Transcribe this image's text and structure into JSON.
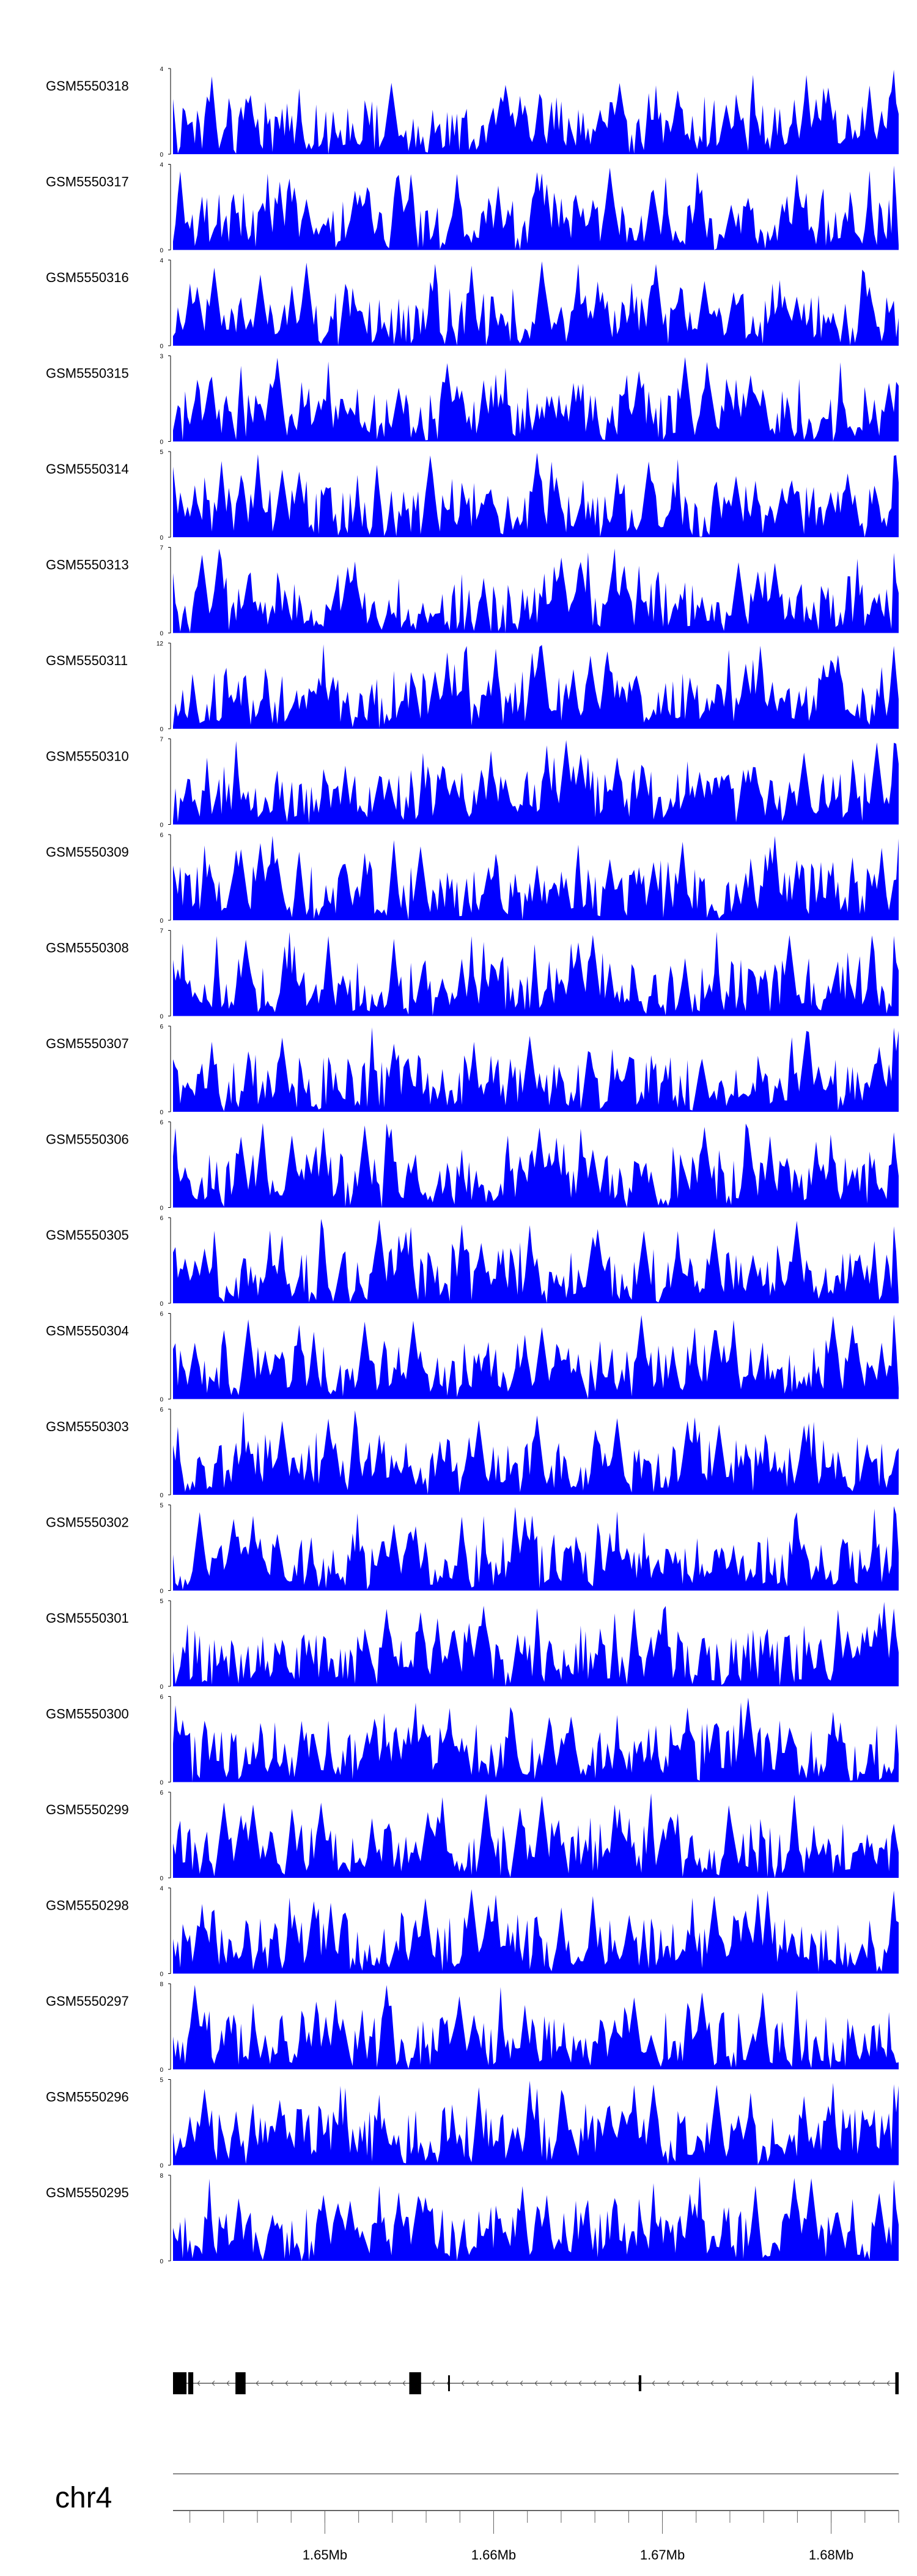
{
  "chart_data": {
    "type": "area",
    "title": "",
    "xlabel": "",
    "ylabel": "",
    "fill_color": "#0000ff",
    "grid": false,
    "x_range": [
      1641000,
      1684000
    ],
    "series": [
      {
        "name": "GSM5550318",
        "ymax": 4,
        "seed": 318
      },
      {
        "name": "GSM5550317",
        "ymax": 4,
        "seed": 317
      },
      {
        "name": "GSM5550316",
        "ymax": 4,
        "seed": 316
      },
      {
        "name": "GSM5550315",
        "ymax": 3,
        "seed": 315
      },
      {
        "name": "GSM5550314",
        "ymax": 5,
        "seed": 314
      },
      {
        "name": "GSM5550313",
        "ymax": 7,
        "seed": 313
      },
      {
        "name": "GSM5550311",
        "ymax": 12,
        "seed": 311
      },
      {
        "name": "GSM5550310",
        "ymax": 7,
        "seed": 310
      },
      {
        "name": "GSM5550309",
        "ymax": 6,
        "seed": 309
      },
      {
        "name": "GSM5550308",
        "ymax": 7,
        "seed": 308
      },
      {
        "name": "GSM5550307",
        "ymax": 6,
        "seed": 307
      },
      {
        "name": "GSM5550306",
        "ymax": 6,
        "seed": 306
      },
      {
        "name": "GSM5550305",
        "ymax": 6,
        "seed": 305
      },
      {
        "name": "GSM5550304",
        "ymax": 6,
        "seed": 304
      },
      {
        "name": "GSM5550303",
        "ymax": 6,
        "seed": 303
      },
      {
        "name": "GSM5550302",
        "ymax": 5,
        "seed": 302
      },
      {
        "name": "GSM5550301",
        "ymax": 5,
        "seed": 301
      },
      {
        "name": "GSM5550300",
        "ymax": 6,
        "seed": 300
      },
      {
        "name": "GSM5550299",
        "ymax": 6,
        "seed": 299
      },
      {
        "name": "GSM5550298",
        "ymax": 4,
        "seed": 298
      },
      {
        "name": "GSM5550297",
        "ymax": 8,
        "seed": 297
      },
      {
        "name": "GSM5550296",
        "ymax": 5,
        "seed": 296
      },
      {
        "name": "GSM5550295",
        "ymax": 8,
        "seed": 295
      }
    ],
    "gene_model": {
      "strand": "-",
      "exons": [
        [
          1641000,
          1641800,
          "thick"
        ],
        [
          1641900,
          1642200,
          "thick"
        ],
        [
          1644700,
          1645300,
          "thick"
        ],
        [
          1655000,
          1655700,
          "thick"
        ],
        [
          1657300,
          1657400,
          "thin"
        ],
        [
          1668600,
          1668750,
          "thin"
        ],
        [
          1683800,
          1684000,
          "thick"
        ]
      ]
    },
    "axis": {
      "chromosome": "chr4",
      "ticks": [
        1650000,
        1660000,
        1670000,
        1680000
      ],
      "tick_labels": [
        "1.65Mb",
        "1.66Mb",
        "1.67Mb",
        "1.68Mb"
      ],
      "minor_tick_step": 2000
    }
  }
}
